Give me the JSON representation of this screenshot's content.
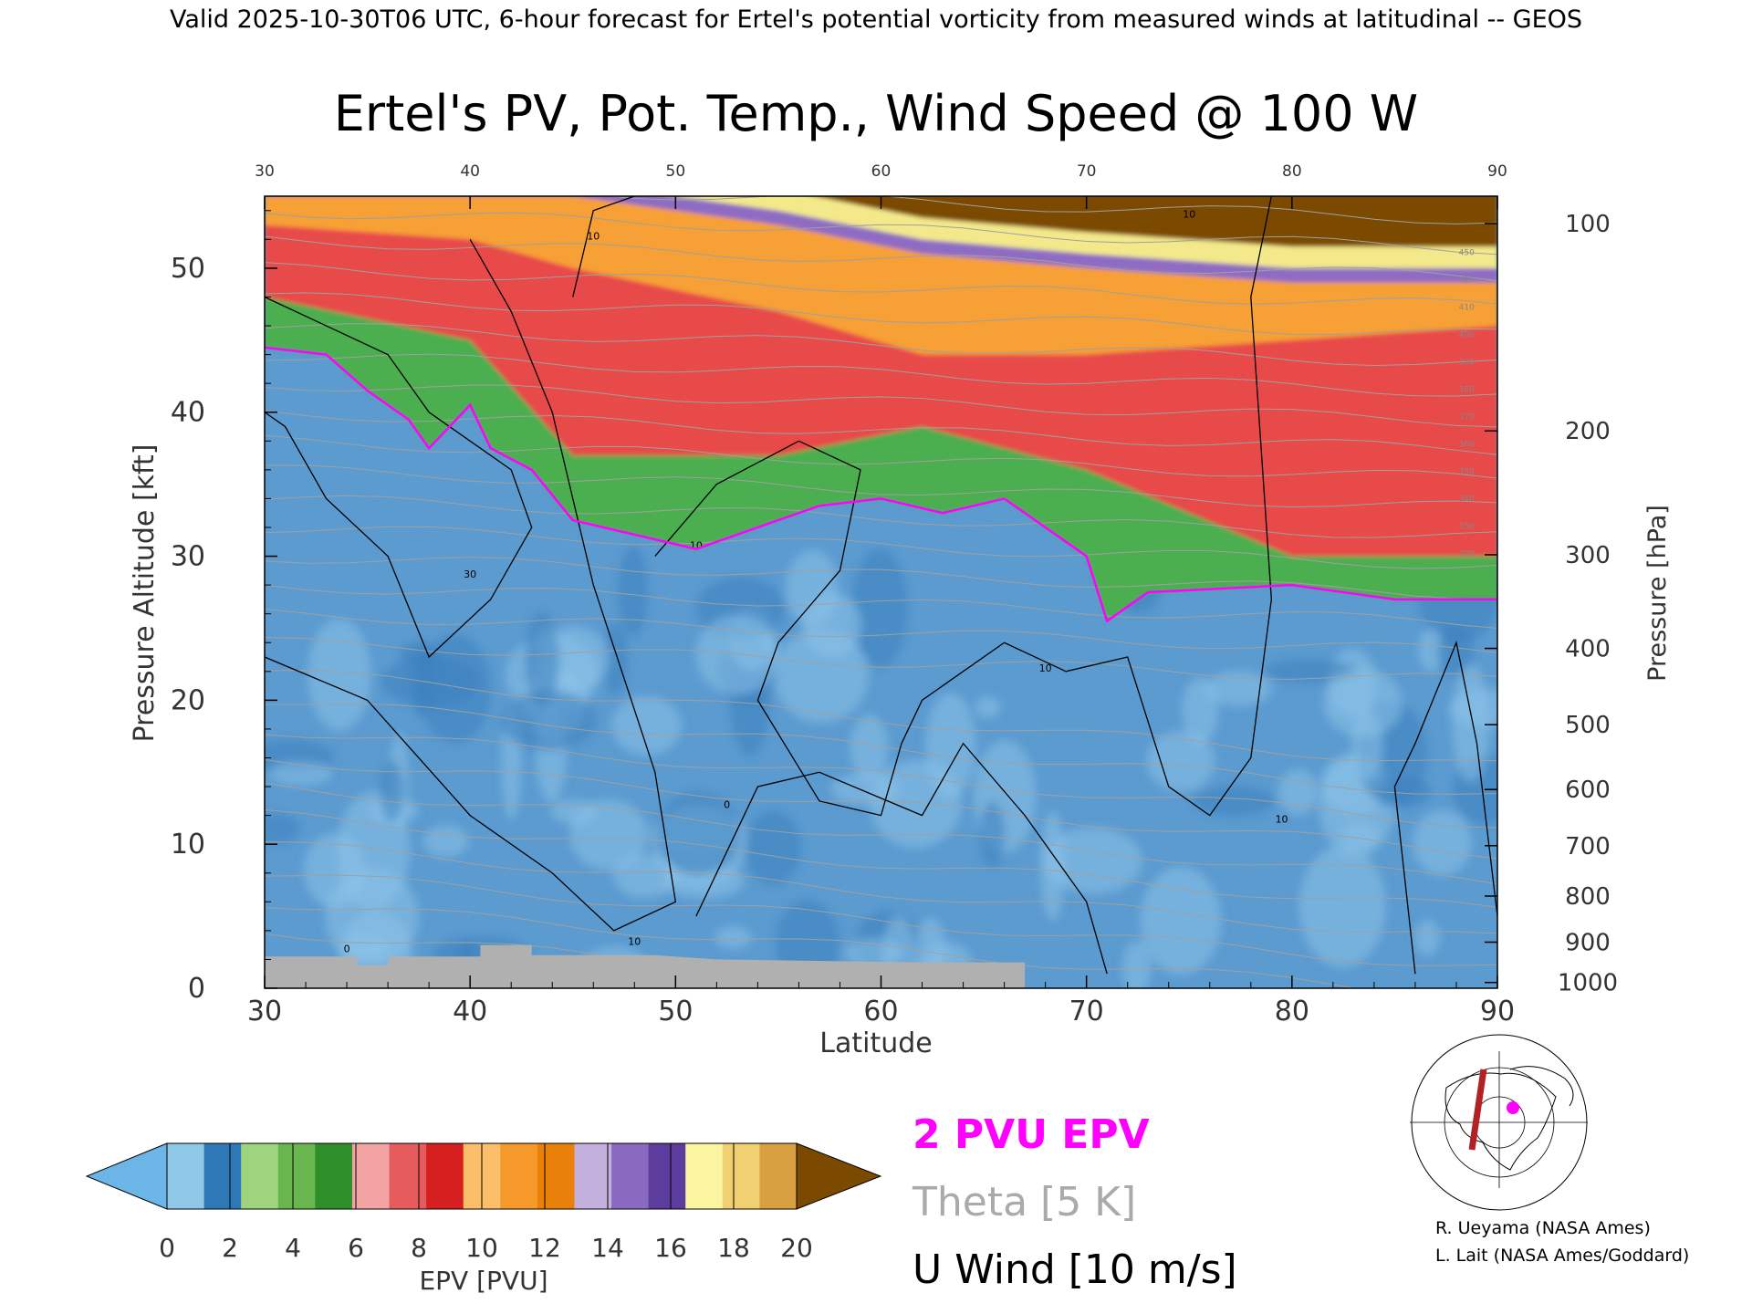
{
  "header": {
    "top_line": "Valid 2025-10-30T06 UTC, 6-hour forecast for Ertel's potential vorticity from measured winds at latitudinal -- GEOS",
    "title": "Ertel's PV, Pot. Temp., Wind Speed @ 100 W"
  },
  "chart_data": {
    "type": "heatmap",
    "title": "Ertel's PV, Pot. Temp., Wind Speed @ 100 W",
    "xlabel": "Latitude",
    "ylabel_left": "Pressure Altitude [kft]",
    "ylabel_right": "Pressure [hPa]",
    "xlim": [
      30,
      90
    ],
    "ylim": [
      0,
      55
    ],
    "x_ticks": [
      "30",
      "40",
      "50",
      "60",
      "70",
      "80",
      "90"
    ],
    "y_ticks": [
      "0",
      "10",
      "20",
      "30",
      "40",
      "50"
    ],
    "pressure_ticks": [
      {
        "label": "100",
        "kft": 53.1
      },
      {
        "label": "200",
        "kft": 38.7
      },
      {
        "label": "300",
        "kft": 30.1
      },
      {
        "label": "400",
        "kft": 23.6
      },
      {
        "label": "500",
        "kft": 18.3
      },
      {
        "label": "600",
        "kft": 13.8
      },
      {
        "label": "700",
        "kft": 9.9
      },
      {
        "label": "800",
        "kft": 6.4
      },
      {
        "label": "900",
        "kft": 3.2
      },
      {
        "label": "1000",
        "kft": 0.4
      }
    ],
    "tropopause_2pvu_kft": [
      {
        "lat": 30,
        "kft": 44.5
      },
      {
        "lat": 33,
        "kft": 44.0
      },
      {
        "lat": 35,
        "kft": 41.5
      },
      {
        "lat": 37,
        "kft": 39.5
      },
      {
        "lat": 38,
        "kft": 37.5
      },
      {
        "lat": 40,
        "kft": 40.5
      },
      {
        "lat": 41,
        "kft": 37.5
      },
      {
        "lat": 43,
        "kft": 36.0
      },
      {
        "lat": 45,
        "kft": 32.5
      },
      {
        "lat": 48,
        "kft": 31.5
      },
      {
        "lat": 51,
        "kft": 30.5
      },
      {
        "lat": 54,
        "kft": 32.0
      },
      {
        "lat": 57,
        "kft": 33.5
      },
      {
        "lat": 60,
        "kft": 34.0
      },
      {
        "lat": 63,
        "kft": 33.0
      },
      {
        "lat": 66,
        "kft": 34.0
      },
      {
        "lat": 70,
        "kft": 30.0
      },
      {
        "lat": 71,
        "kft": 25.5
      },
      {
        "lat": 73,
        "kft": 27.5
      },
      {
        "lat": 80,
        "kft": 28.0
      },
      {
        "lat": 85,
        "kft": 27.0
      },
      {
        "lat": 90,
        "kft": 27.0
      }
    ],
    "stratosphere_bands": [
      {
        "lat": 30,
        "green_top": 48,
        "red_top": 53,
        "orange_top": 55
      },
      {
        "lat": 40,
        "green_top": 45,
        "red_top": 52,
        "orange_top": 55
      },
      {
        "lat": 45,
        "green_top": 37,
        "red_top": 50,
        "orange_top": 55
      },
      {
        "lat": 55,
        "green_top": 37,
        "red_top": 47,
        "orange_top": 53
      },
      {
        "lat": 62,
        "green_top": 39,
        "red_top": 44,
        "orange_top": 51
      },
      {
        "lat": 70,
        "green_top": 36,
        "red_top": 44,
        "orange_top": 50
      },
      {
        "lat": 80,
        "green_top": 30,
        "red_top": 45,
        "orange_top": 49
      },
      {
        "lat": 90,
        "green_top": 30,
        "red_top": 46,
        "orange_top": 49
      }
    ],
    "u_wind_labels": [
      {
        "text": "10",
        "lat": 46,
        "kft": 52
      },
      {
        "text": "10",
        "lat": 75,
        "kft": 53.5
      },
      {
        "text": "10",
        "lat": 51,
        "kft": 30.5
      },
      {
        "text": "30",
        "lat": 40,
        "kft": 28.5
      },
      {
        "text": "10",
        "lat": 68,
        "kft": 22
      },
      {
        "text": "10",
        "lat": 48,
        "kft": 3
      },
      {
        "text": "10",
        "lat": 79.5,
        "kft": 11.5
      },
      {
        "text": "0",
        "lat": 52.5,
        "kft": 12.5
      },
      {
        "text": "0",
        "lat": 34,
        "kft": 2.5
      }
    ],
    "theta_labels": [
      "320",
      "330",
      "340",
      "350",
      "360",
      "370",
      "380",
      "390",
      "400",
      "410",
      "420",
      "450"
    ],
    "colorbar": {
      "label": "EPV [PVU]",
      "ticks": [
        "0",
        "2",
        "4",
        "6",
        "8",
        "10",
        "12",
        "14",
        "16",
        "18",
        "20"
      ],
      "colors": [
        "#6bb6e6",
        "#8fc7e6",
        "#2f78b8",
        "#9fd47f",
        "#6ab64e",
        "#2e8f2a",
        "#f4a3a3",
        "#e65c5c",
        "#d61f1f",
        "#fbbf6a",
        "#f59a2a",
        "#e8800a",
        "#c4b0dc",
        "#8a6ac0",
        "#5c3c9c",
        "#fbf5a0",
        "#f0d070",
        "#d8a040",
        "#7b4a00"
      ]
    },
    "legend": [
      {
        "text": "2 PVU EPV",
        "color": "#ff00ff"
      },
      {
        "text": "Theta [5 K]",
        "color": "#aaaaaa"
      },
      {
        "text": "U Wind [10 m/s]",
        "color": "#000000"
      }
    ]
  },
  "credits": {
    "line1": "R. Ueyama (NASA Ames)",
    "line2": "L. Lait (NASA Ames/Goddard)"
  },
  "colors": {
    "troposphere_base": "#5b9bd0",
    "troposphere_light": "#8cc3e8",
    "troposphere_dark": "#3c7fbe",
    "green": "#4caf50",
    "red": "#e84a4a",
    "orange": "#f7a034",
    "purple": "#8e6cc4",
    "yellow": "#f3e98a",
    "brown": "#7b4a00",
    "tropopause": "#ff00ff",
    "terrain": "#b0b0b0",
    "theta_line": "#a0a0a0"
  }
}
